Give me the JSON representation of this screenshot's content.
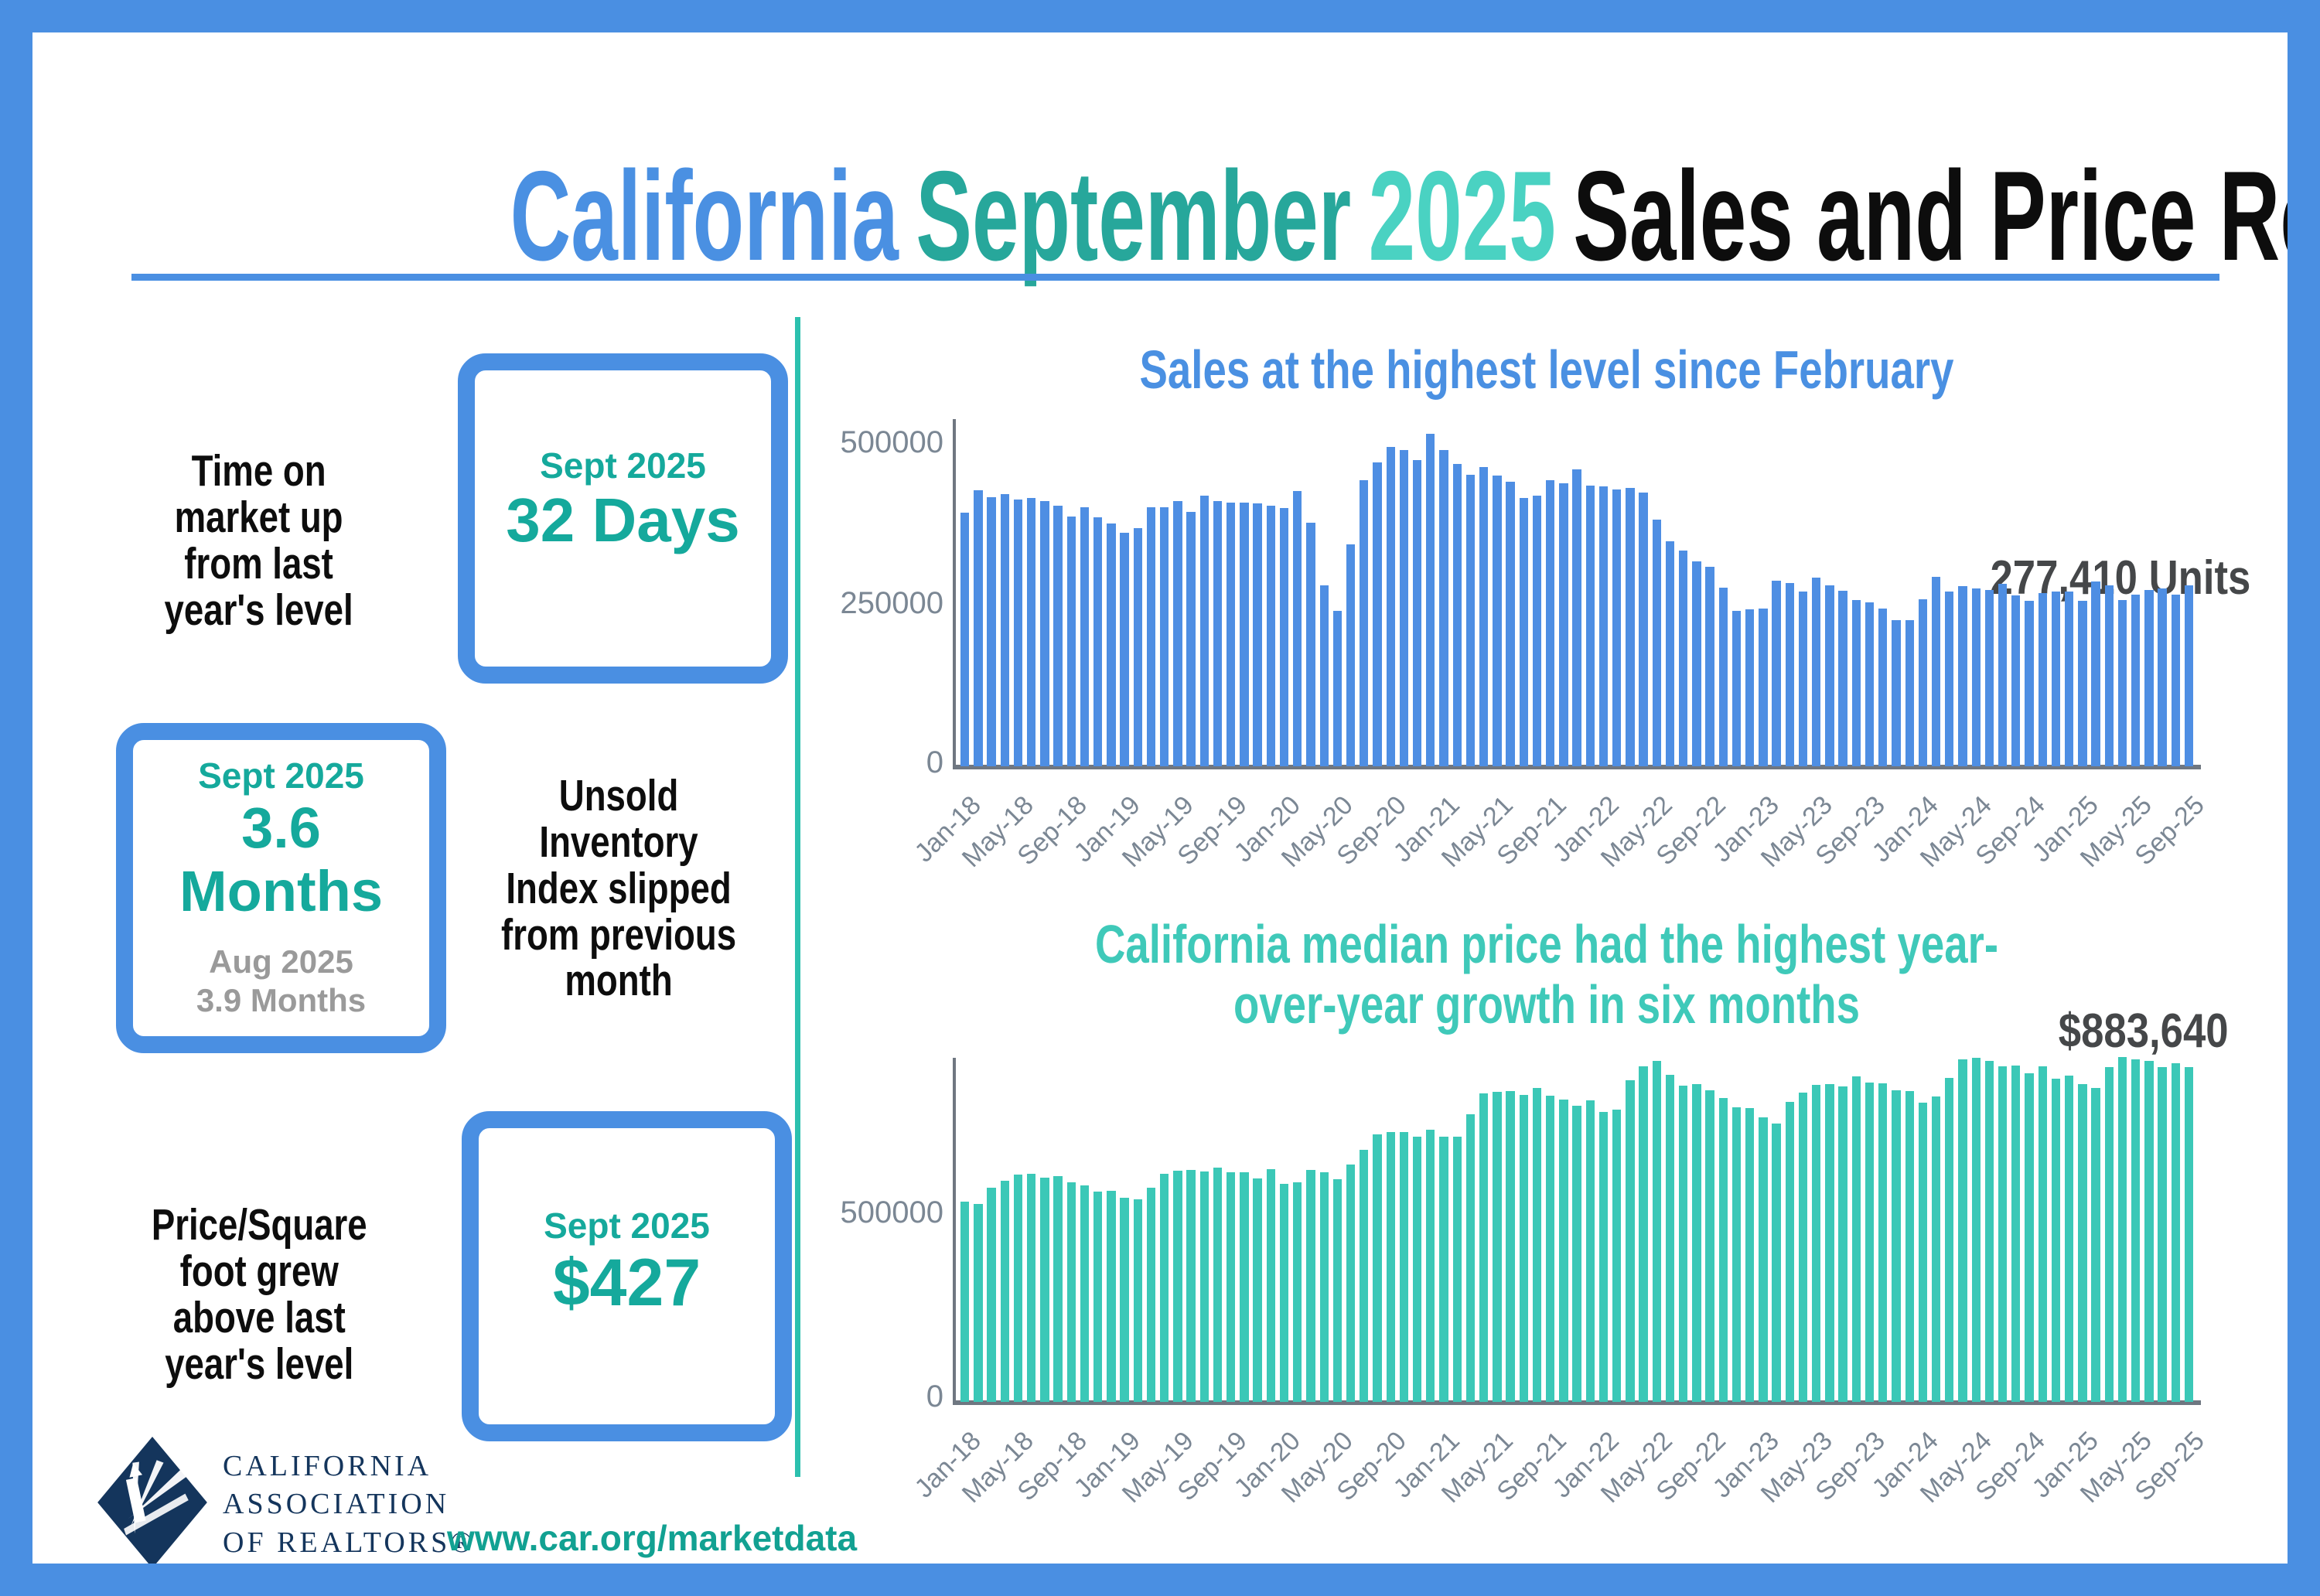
{
  "title": {
    "part1": "California",
    "part2": "September",
    "part3": "2025",
    "part4": "Sales and Price Report"
  },
  "stats": [
    {
      "label": "Time on\nmarket up\nfrom last\nyear's level",
      "period": "Sept 2025",
      "value": "32 Days"
    },
    {
      "period": "Sept 2025",
      "value": "3.6 Months",
      "prev_period": "Aug 2025",
      "prev_value": "3.9 Months",
      "label": "Unsold\nInventory\nIndex slipped\nfrom previous\nmonth"
    },
    {
      "label": "Price/Square\nfoot grew\nabove last\nyear's level",
      "period": "Sept 2025",
      "value": "$427"
    }
  ],
  "footer": {
    "logo_lines": [
      "CALIFORNIA",
      "ASSOCIATION",
      "OF REALTORS®"
    ],
    "url": "www.car.org/marketdata"
  },
  "colors": {
    "frame_blue": "#4a8fe2",
    "title_blue": "#4a90e2",
    "title_teal_dark": "#27a79b",
    "title_teal_light": "#4ad2c2",
    "accent_teal": "#15a99c",
    "muted_gray": "#9a9a9a",
    "axis_gray": "#7b8794",
    "annotation_gray": "#454749",
    "bar_blue": "#4e8ee3",
    "bar_teal": "#3bc8b7",
    "logo_navy": "#14355c",
    "divider_teal": "#2cc0ae"
  },
  "chart_data": [
    {
      "type": "bar",
      "name": "sales",
      "title": "Sales at the highest level since February",
      "annotation": "277,410 Units",
      "color": "#4e8ee3",
      "x_start": "Jan-18",
      "x_freq": "monthly",
      "x_ticks": [
        "Jan-18",
        "May-18",
        "Sep-18",
        "Jan-19",
        "May-19",
        "Sep-19",
        "Jan-20",
        "May-20",
        "Sep-20",
        "Jan-21",
        "May-21",
        "Sep-21",
        "Jan-22",
        "May-22",
        "Sep-22",
        "Jan-23",
        "May-23",
        "Sep-23",
        "Jan-24",
        "May-24",
        "Sep-24",
        "Jan-25",
        "May-25",
        "Sep-25"
      ],
      "y_ticks": [
        500000,
        250000,
        0
      ],
      "ylim": [
        0,
        533000
      ],
      "grid": false,
      "values": [
        388800,
        422910,
        412750,
        416790,
        409270,
        410800,
        406920,
        399600,
        382550,
        397060,
        381400,
        372260,
        357730,
        364520,
        397210,
        396780,
        406960,
        389730,
        415220,
        406100,
        404030,
        404240,
        402880,
        398880,
        395550,
        421670,
        373070,
        277440,
        238740,
        339910,
        437890,
        465400,
        489590,
        484510,
        469330,
        509750,
        484730,
        462720,
        446410,
        458170,
        445660,
        436020,
        411170,
        414860,
        438190,
        434170,
        454450,
        429860,
        429300,
        424640,
        426970,
        419040,
        377790,
        344970,
        330120,
        313540,
        305680,
        274040,
        237740,
        240330,
        241520,
        284010,
        281050,
        267880,
        289460,
        277490,
        269180,
        254740,
        250940,
        241770,
        223940,
        224000,
        256160,
        290240,
        267470,
        275540,
        272410,
        270200,
        279810,
        262050,
        253010,
        264870,
        267800,
        268180,
        254110,
        283540,
        277030,
        254190,
        262600,
        270370,
        272770,
        263390,
        277410
      ]
    },
    {
      "type": "bar",
      "name": "median-price",
      "title": "California median price had the highest year-over-year growth in six months",
      "annotation": "$883,640",
      "color": "#3bc8b7",
      "x_start": "Jan-18",
      "x_freq": "monthly",
      "x_ticks": [
        "Jan-18",
        "May-18",
        "Sep-18",
        "Jan-19",
        "May-19",
        "Sep-19",
        "Jan-20",
        "May-20",
        "Sep-20",
        "Jan-21",
        "May-21",
        "Sep-21",
        "Jan-22",
        "May-22",
        "Sep-22",
        "Jan-23",
        "May-23",
        "Sep-23",
        "Jan-24",
        "May-24",
        "Sep-24",
        "Jan-25",
        "May-25",
        "Sep-25"
      ],
      "y_ticks": [
        500000,
        0
      ],
      "ylim": [
        0,
        920000
      ],
      "grid": false,
      "values": [
        527780,
        522440,
        564830,
        584460,
        600860,
        602760,
        591460,
        596410,
        578850,
        572000,
        554760,
        557600,
        538690,
        534140,
        565880,
        602920,
        611190,
        611420,
        607990,
        617410,
        605680,
        605280,
        589770,
        615090,
        575160,
        579770,
        612440,
        606410,
        588070,
        626170,
        666320,
        706900,
        712430,
        711300,
        699000,
        717930,
        699890,
        699000,
        758990,
        813980,
        818260,
        819630,
        811170,
        827940,
        808890,
        798440,
        782480,
        796570,
        765580,
        771270,
        849080,
        884890,
        898980,
        863790,
        833910,
        839460,
        821680,
        801190,
        777500,
        774580,
        751330,
        735480,
        791490,
        815340,
        836110,
        838260,
        832340,
        859800,
        843340,
        840360,
        822200,
        819740,
        788940,
        806490,
        854490,
        904210,
        908040,
        900720,
        886560,
        888740,
        868150,
        886300,
        852880,
        861020,
        838850,
        829060,
        884350,
        910160,
        903890,
        899560,
        884050,
        893190,
        883640
      ]
    }
  ]
}
